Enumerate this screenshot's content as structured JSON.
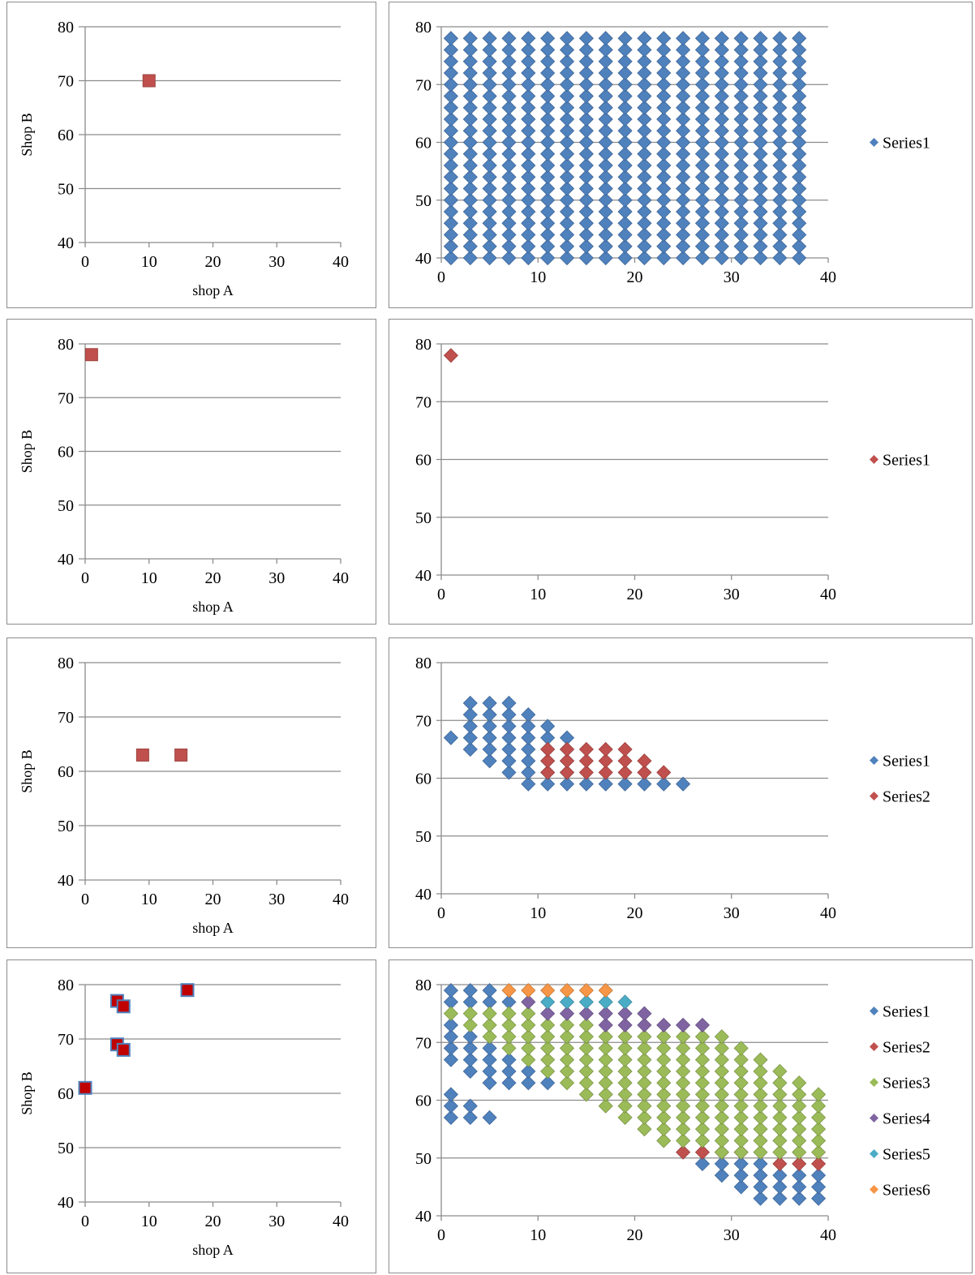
{
  "chart_data": [
    {
      "id": "left-1",
      "type": "scatter",
      "xlabel": "shop A",
      "ylabel": "Shop B",
      "xlim": [
        0,
        40
      ],
      "ylim": [
        40,
        80
      ],
      "xticks": [
        "0",
        "10",
        "20",
        "30",
        "40"
      ],
      "yticks": [
        "40",
        "50",
        "60",
        "70",
        "80"
      ],
      "grid": "horizontal",
      "marker": "square",
      "legend": null,
      "series": [
        {
          "color": "#c0504d",
          "points": [
            [
              10,
              70
            ]
          ]
        }
      ]
    },
    {
      "id": "right-1",
      "type": "scatter",
      "xlim": [
        0,
        40
      ],
      "ylim": [
        40,
        80
      ],
      "xticks": [
        "0",
        "10",
        "20",
        "30",
        "40"
      ],
      "yticks": [
        "40",
        "50",
        "60",
        "70",
        "80"
      ],
      "grid": "horizontal",
      "marker": "diamond",
      "legend": "right",
      "series": [
        {
          "name": "Series1",
          "color": "#4f81bd",
          "grid": {
            "x_from": 1,
            "x_to": 37,
            "y_from": 40,
            "y_to": 78,
            "step": 2
          }
        }
      ]
    },
    {
      "id": "left-2",
      "type": "scatter",
      "xlabel": "shop A",
      "ylabel": "Shop B",
      "xlim": [
        0,
        40
      ],
      "ylim": [
        40,
        80
      ],
      "xticks": [
        "0",
        "10",
        "20",
        "30",
        "40"
      ],
      "yticks": [
        "40",
        "50",
        "60",
        "70",
        "80"
      ],
      "grid": "horizontal",
      "marker": "square",
      "legend": null,
      "series": [
        {
          "color": "#c0504d",
          "points": [
            [
              1,
              78
            ]
          ]
        }
      ]
    },
    {
      "id": "right-2",
      "type": "scatter",
      "xlim": [
        0,
        40
      ],
      "ylim": [
        40,
        80
      ],
      "xticks": [
        "0",
        "10",
        "20",
        "30",
        "40"
      ],
      "yticks": [
        "40",
        "50",
        "60",
        "70",
        "80"
      ],
      "grid": "horizontal",
      "marker": "diamond",
      "legend": "right",
      "series": [
        {
          "name": "Series1",
          "color": "#c0504d",
          "points": [
            [
              1,
              78
            ]
          ]
        }
      ]
    },
    {
      "id": "left-3",
      "type": "scatter",
      "xlabel": "shop A",
      "ylabel": "Shop B",
      "xlim": [
        0,
        40
      ],
      "ylim": [
        40,
        80
      ],
      "xticks": [
        "0",
        "10",
        "20",
        "30",
        "40"
      ],
      "yticks": [
        "40",
        "50",
        "60",
        "70",
        "80"
      ],
      "grid": "horizontal",
      "marker": "square",
      "legend": null,
      "series": [
        {
          "color": "#c0504d",
          "points": [
            [
              9,
              63
            ],
            [
              15,
              63
            ]
          ]
        }
      ]
    },
    {
      "id": "right-3",
      "type": "scatter",
      "xlim": [
        0,
        40
      ],
      "ylim": [
        40,
        80
      ],
      "xticks": [
        "0",
        "10",
        "20",
        "30",
        "40"
      ],
      "yticks": [
        "40",
        "50",
        "60",
        "70",
        "80"
      ],
      "grid": "horizontal",
      "marker": "diamond",
      "legend": "right",
      "series": [
        {
          "name": "Series1",
          "color": "#4f81bd",
          "columns": [
            [
              1,
              67,
              67
            ],
            [
              3,
              65,
              73
            ],
            [
              5,
              63,
              73
            ],
            [
              7,
              61,
              73
            ],
            [
              9,
              59,
              71
            ],
            [
              11,
              59,
              69
            ],
            [
              13,
              59,
              67
            ],
            [
              15,
              59,
              59
            ],
            [
              17,
              59,
              59
            ],
            [
              19,
              59,
              59
            ],
            [
              21,
              59,
              59
            ],
            [
              23,
              59,
              59
            ],
            [
              25,
              59,
              59
            ]
          ]
        },
        {
          "name": "Series2",
          "color": "#c0504d",
          "columns": [
            [
              11,
              61,
              65
            ],
            [
              13,
              61,
              65
            ],
            [
              15,
              61,
              65
            ],
            [
              17,
              61,
              65
            ],
            [
              19,
              61,
              65
            ],
            [
              21,
              61,
              63
            ],
            [
              23,
              61,
              61
            ]
          ]
        }
      ]
    },
    {
      "id": "left-4",
      "type": "scatter",
      "xlabel": "shop A",
      "ylabel": "Shop B",
      "xlim": [
        0,
        40
      ],
      "ylim": [
        40,
        80
      ],
      "xticks": [
        "0",
        "10",
        "20",
        "30",
        "40"
      ],
      "yticks": [
        "40",
        "50",
        "60",
        "70",
        "80"
      ],
      "grid": "horizontal",
      "marker": "square",
      "marker_outline": "#4f81bd",
      "legend": null,
      "series": [
        {
          "color": "#c00000",
          "points": [
            [
              0,
              61
            ],
            [
              5,
              77
            ],
            [
              6,
              76
            ],
            [
              5,
              69
            ],
            [
              6,
              68
            ],
            [
              16,
              79
            ]
          ]
        }
      ]
    },
    {
      "id": "right-4",
      "type": "scatter",
      "xlim": [
        0,
        40
      ],
      "ylim": [
        40,
        80
      ],
      "xticks": [
        "0",
        "10",
        "20",
        "30",
        "40"
      ],
      "yticks": [
        "40",
        "50",
        "60",
        "70",
        "80"
      ],
      "grid": "horizontal",
      "marker": "diamond",
      "legend": "right",
      "series": [
        {
          "name": "Series1",
          "color": "#4f81bd",
          "columns": [
            [
              1,
              57,
              61
            ],
            [
              1,
              67,
              73
            ],
            [
              1,
              77,
              79
            ],
            [
              3,
              57,
              59
            ],
            [
              3,
              65,
              71
            ],
            [
              3,
              77,
              79
            ],
            [
              5,
              57,
              57
            ],
            [
              5,
              63,
              69
            ],
            [
              5,
              77,
              79
            ],
            [
              7,
              63,
              67
            ],
            [
              7,
              77,
              77
            ],
            [
              9,
              63,
              65
            ],
            [
              11,
              63,
              63
            ],
            [
              27,
              49,
              49
            ],
            [
              29,
              47,
              49
            ],
            [
              31,
              45,
              49
            ],
            [
              33,
              43,
              49
            ],
            [
              35,
              43,
              47
            ],
            [
              37,
              43,
              47
            ],
            [
              39,
              43,
              47
            ]
          ]
        },
        {
          "name": "Series2",
          "color": "#c0504d",
          "columns": [
            [
              25,
              51,
              51
            ],
            [
              27,
              51,
              51
            ],
            [
              29,
              51,
              51
            ],
            [
              31,
              51,
              51
            ],
            [
              35,
              49,
              49
            ],
            [
              37,
              49,
              49
            ],
            [
              39,
              49,
              49
            ]
          ]
        },
        {
          "name": "Series3",
          "color": "#9bbb59",
          "columns": [
            [
              1,
              75,
              75
            ],
            [
              3,
              73,
              75
            ],
            [
              5,
              71,
              75
            ],
            [
              7,
              69,
              75
            ],
            [
              9,
              67,
              75
            ],
            [
              11,
              65,
              73
            ],
            [
              13,
              63,
              73
            ],
            [
              15,
              61,
              73
            ],
            [
              17,
              59,
              71
            ],
            [
              19,
              57,
              71
            ],
            [
              21,
              55,
              71
            ],
            [
              23,
              53,
              71
            ],
            [
              25,
              53,
              71
            ],
            [
              27,
              53,
              71
            ],
            [
              29,
              51,
              71
            ],
            [
              31,
              51,
              69
            ],
            [
              33,
              51,
              67
            ],
            [
              35,
              51,
              65
            ],
            [
              37,
              51,
              63
            ],
            [
              39,
              51,
              61
            ]
          ]
        },
        {
          "name": "Series4",
          "color": "#8064a2",
          "columns": [
            [
              9,
              77,
              77
            ],
            [
              11,
              75,
              75
            ],
            [
              13,
              75,
              75
            ],
            [
              15,
              75,
              75
            ],
            [
              17,
              73,
              75
            ],
            [
              19,
              73,
              75
            ],
            [
              21,
              73,
              75
            ],
            [
              23,
              73,
              73
            ],
            [
              25,
              73,
              73
            ],
            [
              27,
              73,
              73
            ]
          ]
        },
        {
          "name": "Series5",
          "color": "#4bacc6",
          "columns": [
            [
              11,
              77,
              77
            ],
            [
              13,
              77,
              77
            ],
            [
              15,
              77,
              77
            ],
            [
              17,
              77,
              77
            ],
            [
              19,
              77,
              77
            ]
          ]
        },
        {
          "name": "Series6",
          "color": "#f79646",
          "columns": [
            [
              7,
              79,
              79
            ],
            [
              9,
              79,
              79
            ],
            [
              11,
              79,
              79
            ],
            [
              13,
              79,
              79
            ],
            [
              15,
              79,
              79
            ],
            [
              17,
              79,
              79
            ]
          ]
        }
      ]
    }
  ]
}
